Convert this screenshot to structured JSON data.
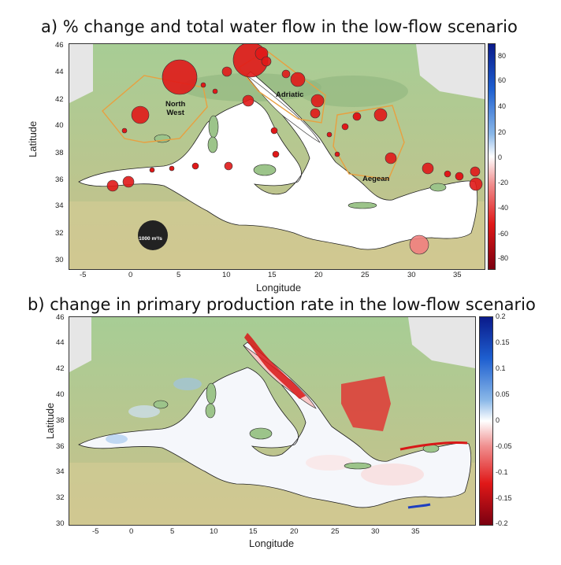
{
  "figure": {
    "panel_a": {
      "title": "a)  % change and total water flow in the low-flow scenario",
      "xlabel": "Longitude",
      "ylabel": "Latitude",
      "xticks": [
        "-5",
        "0",
        "5",
        "10",
        "15",
        "20",
        "25",
        "30",
        "35"
      ],
      "yticks": [
        "46",
        "44",
        "42",
        "40",
        "38",
        "36",
        "34",
        "32",
        "30"
      ],
      "colorbar_ticks": [
        "80",
        "60",
        "40",
        "20",
        "0",
        "-20",
        "-40",
        "-60",
        "-80"
      ],
      "region_labels": {
        "north_west": "North\nWest",
        "adriatic": "Adriatic",
        "aegean": "Aegean"
      },
      "legend_size_label": "1000 m³/s"
    },
    "panel_b": {
      "title": "b) change in primary production rate in the low-flow scenario",
      "xlabel": "Longitude",
      "ylabel": "Latitude",
      "xticks": [
        "-5",
        "0",
        "5",
        "10",
        "15",
        "20",
        "25",
        "30",
        "35"
      ],
      "yticks": [
        "46",
        "44",
        "42",
        "40",
        "38",
        "36",
        "34",
        "32",
        "30"
      ],
      "colorbar_ticks": [
        "0.2",
        "0.15",
        "0.1",
        "0.05",
        "0",
        "-0.05",
        "-0.1",
        "-0.15",
        "-0.2"
      ]
    },
    "colors": {
      "land": "#9cc48a",
      "sea": "#ffffff",
      "outside": "#e6e6e6",
      "river_circle": "#e52020",
      "positive_max": "#0a1a8a",
      "negative_max": "#7a0010"
    }
  }
}
